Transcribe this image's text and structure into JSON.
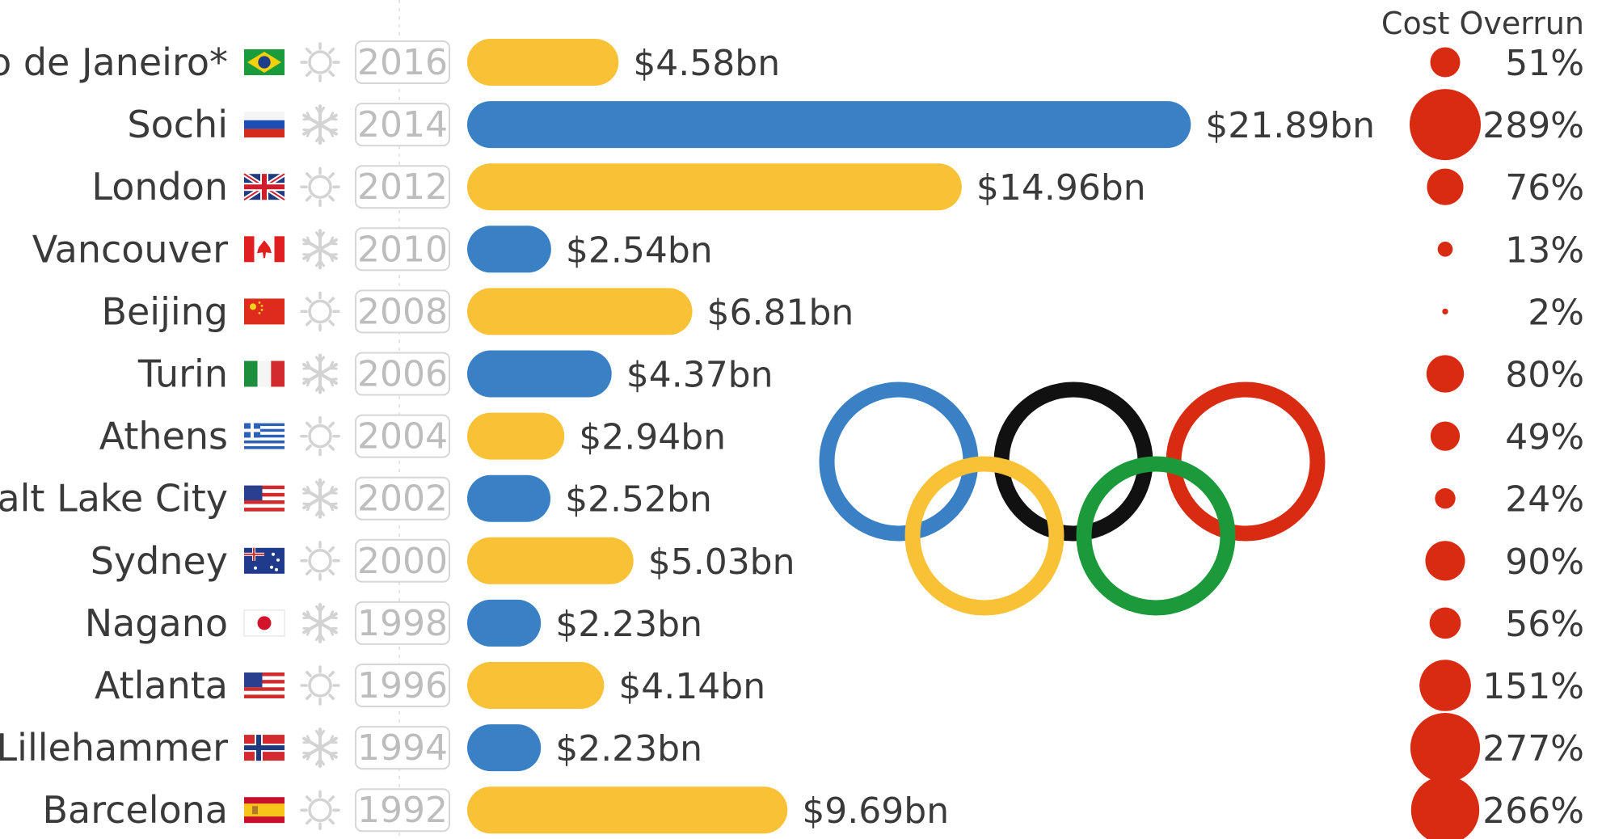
{
  "chart_data": {
    "type": "bar",
    "column_header": "Cost Overrun",
    "colors": {
      "summer": "#f9c136",
      "winter": "#3a80c4",
      "overrun": "#d82b12"
    },
    "rows": [
      {
        "city": "Rio de Janeiro*",
        "flag": "brazil",
        "season": "summer",
        "year": "2016",
        "cost": 4.58,
        "cost_label": "$4.58bn",
        "overrun": 51,
        "overrun_label": "51%"
      },
      {
        "city": "Sochi",
        "flag": "russia",
        "season": "winter",
        "year": "2014",
        "cost": 21.89,
        "cost_label": "$21.89bn",
        "overrun": 289,
        "overrun_label": "289%"
      },
      {
        "city": "London",
        "flag": "uk",
        "season": "summer",
        "year": "2012",
        "cost": 14.96,
        "cost_label": "$14.96bn",
        "overrun": 76,
        "overrun_label": "76%"
      },
      {
        "city": "Vancouver",
        "flag": "canada",
        "season": "winter",
        "year": "2010",
        "cost": 2.54,
        "cost_label": "$2.54bn",
        "overrun": 13,
        "overrun_label": "13%"
      },
      {
        "city": "Beijing",
        "flag": "china",
        "season": "summer",
        "year": "2008",
        "cost": 6.81,
        "cost_label": "$6.81bn",
        "overrun": 2,
        "overrun_label": "2%"
      },
      {
        "city": "Turin",
        "flag": "italy",
        "season": "winter",
        "year": "2006",
        "cost": 4.37,
        "cost_label": "$4.37bn",
        "overrun": 80,
        "overrun_label": "80%"
      },
      {
        "city": "Athens",
        "flag": "greece",
        "season": "summer",
        "year": "2004",
        "cost": 2.94,
        "cost_label": "$2.94bn",
        "overrun": 49,
        "overrun_label": "49%"
      },
      {
        "city": "Salt Lake City",
        "flag": "usa",
        "season": "winter",
        "year": "2002",
        "cost": 2.52,
        "cost_label": "$2.52bn",
        "overrun": 24,
        "overrun_label": "24%"
      },
      {
        "city": "Sydney",
        "flag": "australia",
        "season": "summer",
        "year": "2000",
        "cost": 5.03,
        "cost_label": "$5.03bn",
        "overrun": 90,
        "overrun_label": "90%"
      },
      {
        "city": "Nagano",
        "flag": "japan",
        "season": "winter",
        "year": "1998",
        "cost": 2.23,
        "cost_label": "$2.23bn",
        "overrun": 56,
        "overrun_label": "56%"
      },
      {
        "city": "Atlanta",
        "flag": "usa",
        "season": "summer",
        "year": "1996",
        "cost": 4.14,
        "cost_label": "$4.14bn",
        "overrun": 151,
        "overrun_label": "151%"
      },
      {
        "city": "Lillehammer",
        "flag": "norway",
        "season": "winter",
        "year": "1994",
        "cost": 2.23,
        "cost_label": "$2.23bn",
        "overrun": 277,
        "overrun_label": "277%"
      },
      {
        "city": "Barcelona",
        "flag": "spain",
        "season": "summer",
        "year": "1992",
        "cost": 9.69,
        "cost_label": "$9.69bn",
        "overrun": 266,
        "overrun_label": "266%"
      }
    ],
    "decoration": "olympic-rings"
  }
}
